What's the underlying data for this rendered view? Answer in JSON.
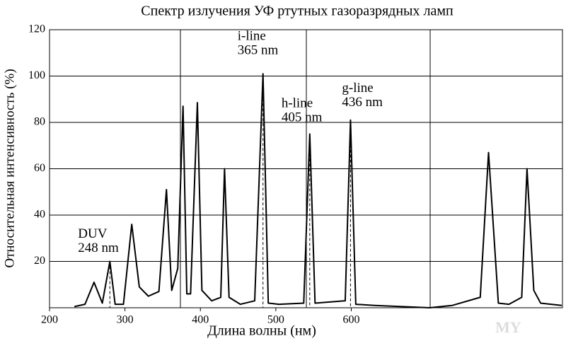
{
  "chart_data": {
    "type": "line",
    "title": "Спектр излучения УФ ртутных газоразрядных ламп",
    "x_label": "Длина волны (нм)",
    "y_label": "Относительная интенсивность (%)",
    "xlim": [
      200,
      880
    ],
    "xticks": [
      200,
      300,
      400,
      500,
      600
    ],
    "ylim": [
      0,
      120
    ],
    "yticks": [
      20,
      40,
      60,
      80,
      100,
      120
    ],
    "grid": true,
    "color": "#000000",
    "x": [
      233,
      247,
      259,
      270,
      280,
      287,
      298,
      309,
      319,
      331,
      345,
      355,
      362,
      370,
      377,
      382,
      387,
      396,
      402,
      415,
      427,
      432,
      438,
      453,
      472,
      483,
      490,
      504,
      537,
      545,
      552,
      592,
      599,
      606,
      631,
      704,
      734,
      771,
      782,
      795,
      809,
      826,
      833,
      842,
      851,
      879
    ],
    "values": [
      0.5,
      1.5,
      11,
      2,
      20,
      1.5,
      1.5,
      36,
      9,
      5,
      7,
      51,
      7.5,
      17,
      87,
      6,
      6,
      88.5,
      7.5,
      3,
      4.5,
      60,
      4.5,
      1.5,
      3,
      101,
      2,
      1.5,
      2,
      75,
      2,
      3,
      81,
      1.5,
      1,
      0,
      1,
      4.5,
      67,
      2,
      1.5,
      4.5,
      60,
      7.5,
      2,
      1
    ],
    "annotations": [
      {
        "lines": [
          "DUV",
          "248 nm"
        ],
        "x": 280,
        "y": 20
      },
      {
        "lines": [
          "i-line",
          "365 nm"
        ],
        "x": 483,
        "y": 101
      },
      {
        "lines": [
          "h-line",
          "405 nm"
        ],
        "x": 545,
        "y": 75
      },
      {
        "lines": [
          "g-line",
          "436 nm"
        ],
        "x": 599,
        "y": 81
      }
    ],
    "watermark": "MY"
  }
}
